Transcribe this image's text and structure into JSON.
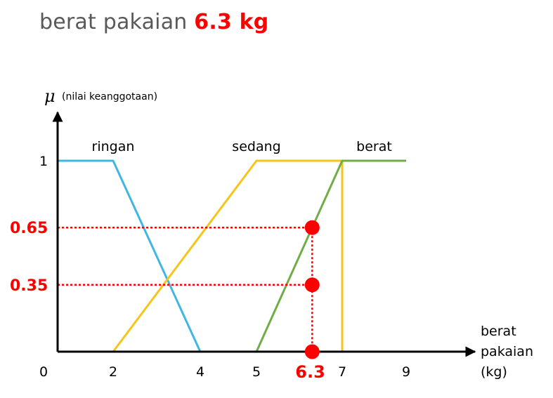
{
  "title": {
    "prefix": "berat pakaian",
    "value": "6.3 kg"
  },
  "colors": {
    "ringan": "#3fb6e3",
    "sedang": "#f5c518",
    "berat": "#70ad47",
    "highlight": "#ff0000",
    "axis": "#000000",
    "title": "#595959"
  },
  "chart_data": {
    "type": "line",
    "ylabel_symbol": "μ",
    "ylabel": "(nilai keanggotaan)",
    "xlabel_lines": [
      "berat",
      "pakaian",
      "(kg)"
    ],
    "xlim": [
      0,
      9
    ],
    "ylim": [
      0,
      1
    ],
    "x_ticks": [
      "0",
      "2",
      "4",
      "5",
      "7",
      "9"
    ],
    "x_tick_values": [
      0,
      2,
      4,
      5,
      7,
      9
    ],
    "y_ticks": [
      "1"
    ],
    "y_tick_values": [
      1
    ],
    "series": [
      {
        "name": "ringan",
        "color": "#3fb6e3",
        "x": [
          0,
          2,
          4
        ],
        "y": [
          1,
          1,
          0
        ]
      },
      {
        "name": "sedang",
        "color": "#f5c518",
        "x": [
          2,
          5,
          7,
          7
        ],
        "y": [
          0,
          1,
          1,
          0
        ]
      },
      {
        "name": "berat",
        "color": "#70ad47",
        "x": [
          5,
          7,
          9
        ],
        "y": [
          0,
          1,
          1
        ]
      }
    ],
    "series_label_x": [
      2,
      5,
      8
    ],
    "highlight": {
      "x": 6.3,
      "x_label": "6.3",
      "y_values": [
        0.65,
        0.35
      ],
      "y_labels": [
        "0.65",
        "0.35"
      ]
    }
  }
}
